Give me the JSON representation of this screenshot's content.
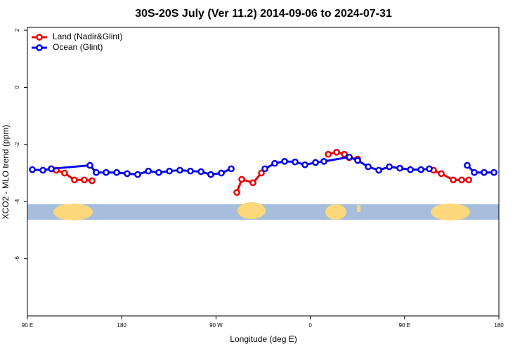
{
  "chart_data": {
    "type": "line",
    "title": "30S-20S July (Ver 11.2)   2014-09-06 to 2024-07-31",
    "x_label": "Longitude (deg E)",
    "y_label": "XCO2 - MLO trend (ppm)",
    "xlim": [
      90,
      540
    ],
    "xticks": [
      {
        "value": 90,
        "label": "90 E"
      },
      180,
      {
        "value": 270,
        "label": "90 W"
      },
      {
        "value": 360,
        "label": "0"
      },
      {
        "value": 450,
        "label": "90 E"
      },
      {
        "value": 540,
        "label": "180"
      }
    ],
    "ylim": [
      -8,
      2.1
    ],
    "yticks": [
      2,
      0,
      -2,
      -4,
      -6
    ],
    "legend": "top-left",
    "series": [
      {
        "name": "Land (Nadir&Glint)",
        "color": "#ee0000",
        "x": [
          112.8,
          117.5,
          125.5,
          134.9,
          144.3,
          151.7,
          null,
          289.9,
          294.6,
          305.3,
          313.3,
          null,
          377.1,
          385.1,
          392.5,
          397.2,
          405.2,
          null,
          477.6,
          485.0,
          496.4,
          504.5,
          511.2
        ],
        "values": [
          -2.85,
          -2.9,
          -3.0,
          -3.24,
          -3.24,
          -3.27,
          null,
          -3.68,
          -3.22,
          -3.34,
          -3.0,
          null,
          -2.34,
          -2.27,
          -2.34,
          -2.46,
          -2.51,
          null,
          -2.9,
          -3.02,
          -3.24,
          -3.24,
          -3.24
        ]
      },
      {
        "name": "Ocean (Glint)",
        "color": "#0000ee",
        "x": [
          94.7,
          104.8,
          112.8,
          149.7,
          155.7,
          165.1,
          175.2,
          185.2,
          195.3,
          205.4,
          215.4,
          225.5,
          235.5,
          245.6,
          255.7,
          265.0,
          275.1,
          284.5,
          null,
          316.7,
          326.1,
          335.5,
          345.5,
          354.9,
          365.0,
          373.0,
          397.2,
          405.2,
          415.3,
          425.4,
          435.4,
          445.5,
          455.5,
          465.6,
          473.6,
          null,
          509.8,
          516.5,
          525.9,
          535.3
        ],
        "values": [
          -2.88,
          -2.9,
          -2.85,
          -2.73,
          -2.98,
          -2.98,
          -2.98,
          -3.02,
          -3.05,
          -2.93,
          -2.98,
          -2.93,
          -2.9,
          -2.93,
          -2.95,
          -3.05,
          -3.0,
          -2.85,
          null,
          -2.85,
          -2.66,
          -2.59,
          -2.61,
          -2.71,
          -2.63,
          -2.59,
          -2.44,
          -2.56,
          -2.78,
          -2.9,
          -2.78,
          -2.83,
          -2.88,
          -2.88,
          -2.85,
          null,
          -2.73,
          -2.98,
          -2.98,
          -2.98
        ]
      }
    ]
  }
}
